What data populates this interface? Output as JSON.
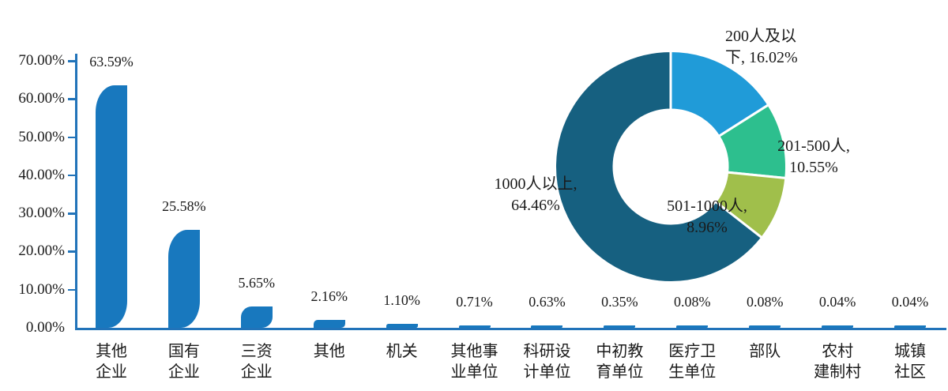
{
  "page": {
    "background": "#ffffff",
    "text_color": "#1a1a1a"
  },
  "chart_data": [
    {
      "type": "bar",
      "title": "",
      "xlabel": "",
      "ylabel": "",
      "ylim": [
        0,
        70
      ],
      "grid": false,
      "bar_color": "#1878be",
      "axis_color": "#2173b9",
      "y_ticks": [
        "70.00%",
        "60.00%",
        "50.00%",
        "40.00%",
        "30.00%",
        "20.00%",
        "10.00%",
        "0.00%"
      ],
      "y_tick_values": [
        70,
        60,
        50,
        40,
        30,
        20,
        10,
        0
      ],
      "categories": [
        "其他企业",
        "国有企业",
        "三资企业",
        "其他",
        "机关",
        "其他事业单位",
        "科研设计单位",
        "中初教育单位",
        "医疗卫生单位",
        "部队",
        "农村建制村",
        "城镇社区"
      ],
      "category_label_lines": [
        [
          "其他",
          "企业"
        ],
        [
          "国有",
          "企业"
        ],
        [
          "三资",
          "企业"
        ],
        [
          "其他"
        ],
        [
          "机关"
        ],
        [
          "其他事",
          "业单位"
        ],
        [
          "科研设",
          "计单位"
        ],
        [
          "中初教",
          "育单位"
        ],
        [
          "医疗卫",
          "生单位"
        ],
        [
          "部队"
        ],
        [
          "农村",
          "建制村"
        ],
        [
          "城镇",
          "社区"
        ]
      ],
      "values": [
        63.59,
        25.58,
        5.65,
        2.16,
        1.1,
        0.71,
        0.63,
        0.35,
        0.08,
        0.08,
        0.04,
        0.04
      ],
      "data_labels": [
        "63.59%",
        "25.58%",
        "5.65%",
        "2.16%",
        "1.10%",
        "0.71%",
        "0.63%",
        "0.35%",
        "0.08%",
        "0.08%",
        "0.04%",
        "0.04%"
      ]
    },
    {
      "type": "donut",
      "direction": "clockwise",
      "start_angle_deg": 0,
      "hole_ratio": 0.49,
      "separator_color": "#ffffff",
      "slices": [
        {
          "label": "200人及以下",
          "value": 16.02,
          "color": "#209bd8",
          "label_lines": [
            "200人及以",
            "下, 16.02%"
          ]
        },
        {
          "label": "201-500人",
          "value": 10.55,
          "color": "#2dbf8e",
          "label_lines": [
            "201-500人,",
            "10.55%"
          ]
        },
        {
          "label": "501-1000人",
          "value": 8.96,
          "color": "#a0bf4b",
          "label_lines": [
            "501-1000人,",
            "8.96%"
          ]
        },
        {
          "label": "1000人以上",
          "value": 64.46,
          "color": "#166080",
          "label_lines": [
            "1000人以上,",
            "64.46%"
          ]
        }
      ]
    }
  ]
}
